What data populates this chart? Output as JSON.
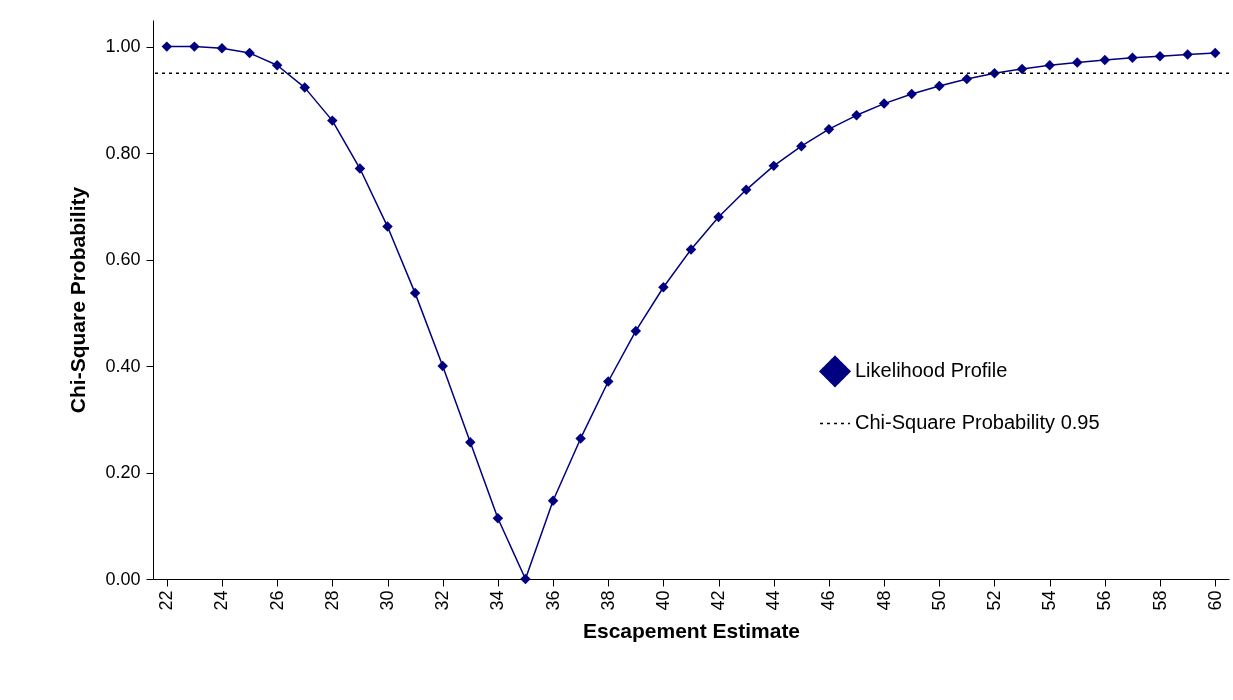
{
  "chart_data": {
    "type": "line",
    "xlabel": "Escapement Estimate",
    "ylabel": "Chi-Square Probability",
    "x": [
      22,
      23,
      24,
      25,
      26,
      27,
      28,
      29,
      30,
      31,
      32,
      33,
      34,
      35,
      36,
      37,
      38,
      39,
      40,
      41,
      42,
      43,
      44,
      45,
      46,
      47,
      48,
      49,
      50,
      51,
      52,
      53,
      54,
      55,
      56,
      57,
      58,
      59,
      60
    ],
    "series": [
      {
        "name": "Likelihood Profile",
        "color": "#000080",
        "values": [
          1.0,
          1.0,
          0.997,
          0.988,
          0.965,
          0.923,
          0.861,
          0.771,
          0.662,
          0.537,
          0.4,
          0.257,
          0.114,
          0.0,
          0.147,
          0.264,
          0.371,
          0.466,
          0.548,
          0.619,
          0.68,
          0.731,
          0.776,
          0.813,
          0.845,
          0.871,
          0.893,
          0.911,
          0.926,
          0.939,
          0.95,
          0.958,
          0.965,
          0.97,
          0.975,
          0.979,
          0.982,
          0.985,
          0.988
        ]
      }
    ],
    "ref_lines": [
      {
        "axis": "y",
        "value": 0.95,
        "label": "Chi-Square Probability 0.95",
        "color": "#000000",
        "line_style": "dotted"
      }
    ],
    "xlim": [
      21.5,
      60.5
    ],
    "xticks": [
      22,
      24,
      26,
      28,
      30,
      32,
      34,
      36,
      38,
      40,
      42,
      44,
      46,
      48,
      50,
      52,
      54,
      56,
      58,
      60
    ],
    "ylim": [
      0,
      1.05
    ],
    "yticks": [
      {
        "value": 0,
        "label": "0.00"
      },
      {
        "value": 0.2,
        "label": "0.20"
      },
      {
        "value": 0.4,
        "label": "0.40"
      },
      {
        "value": 0.6,
        "label": "0.60"
      },
      {
        "value": 0.8,
        "label": "0.80"
      },
      {
        "value": 1,
        "label": "1.00"
      }
    ],
    "grid": false,
    "legend": "right",
    "marker": "diamond",
    "line_style": "solid"
  }
}
